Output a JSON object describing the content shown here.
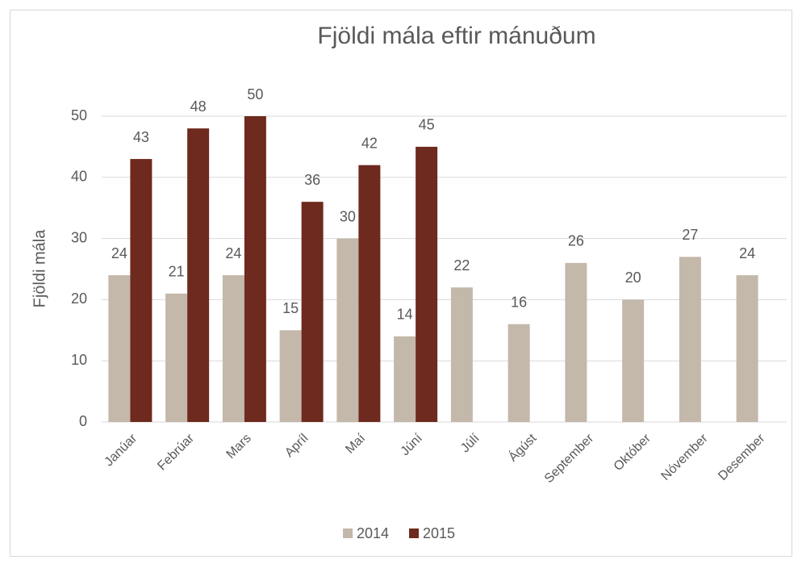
{
  "chart_data": {
    "type": "bar",
    "title": "Fjöldi mála eftir mánuðum",
    "y_label": "Fjöldi mála",
    "categories": [
      "Janúar",
      "Febrúar",
      "Mars",
      "Apríl",
      "Maí",
      "Júní",
      "Júlí",
      "Ágúst",
      "September",
      "Október",
      "Nóvember",
      "Desember"
    ],
    "series": [
      {
        "name": "2014",
        "color": "#c4b8aa",
        "values": [
          24,
          21,
          24,
          15,
          30,
          14,
          22,
          16,
          26,
          20,
          27,
          24
        ]
      },
      {
        "name": "2015",
        "color": "#6e2a1e",
        "values": [
          43,
          48,
          50,
          36,
          42,
          45,
          null,
          null,
          null,
          null,
          null,
          null
        ]
      }
    ],
    "ylim": [
      0,
      50
    ],
    "yticks": [
      0,
      10,
      20,
      30,
      40,
      50
    ],
    "grid": true,
    "legend": "bottom"
  }
}
